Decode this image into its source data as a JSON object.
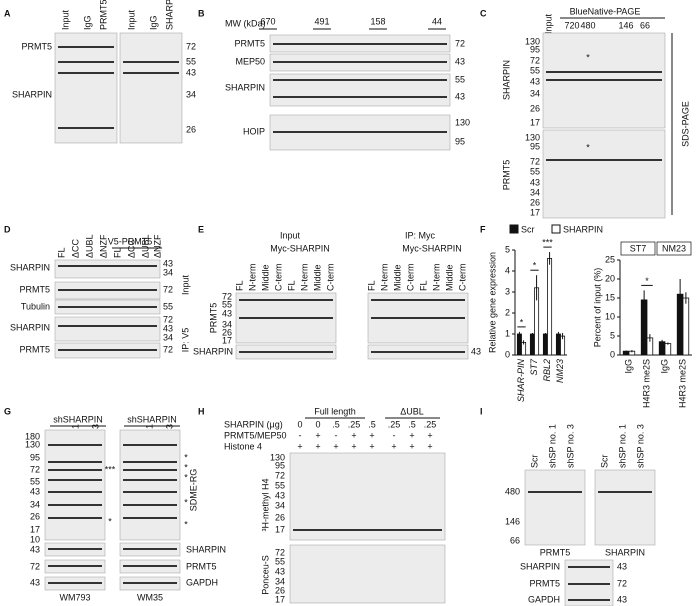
{
  "panels": {
    "A": {
      "letter": "A",
      "lanes_left": [
        "Input",
        "IgG",
        "PRMT5"
      ],
      "lanes_right": [
        "Input",
        "IgG",
        "SHARPIN"
      ],
      "rows": [
        "PRMT5",
        "SHARPIN"
      ],
      "mw": [
        72,
        55,
        43,
        34,
        26
      ]
    },
    "B": {
      "letter": "B",
      "mw_label": "MW (kDa)",
      "fractions": [
        670,
        491,
        158,
        44
      ],
      "rows": [
        "PRMT5",
        "MEP50",
        "SHARPIN",
        "HOIP"
      ],
      "mw": [
        72,
        43,
        55,
        43,
        130,
        95
      ]
    },
    "C": {
      "letter": "C",
      "title": "BlueNative-PAGE",
      "sizes": [
        720,
        480,
        146,
        66
      ],
      "lane": "Input",
      "rows": [
        "SHARPIN",
        "PRMT5"
      ],
      "mw_top": [
        130,
        95,
        72,
        55,
        43,
        34,
        26,
        17
      ],
      "mw_bottom": [
        130,
        95,
        72,
        55,
        43,
        34,
        26,
        17
      ],
      "side": "SDS-PAGE",
      "marks": [
        "*",
        "*"
      ]
    },
    "D": {
      "letter": "D",
      "group": "V5-PRMT5",
      "lanes": [
        "FL",
        "ΔCC",
        "ΔUBL",
        "ΔNZF",
        "FL",
        "ΔCC",
        "ΔUBL",
        "ΔNZF"
      ],
      "rows": [
        "SHARPIN",
        "PRMT5",
        "Tubulin",
        "SHARPIN",
        "PRMT5"
      ],
      "mw": [
        43,
        34,
        72,
        55,
        72,
        43,
        34,
        72
      ],
      "sides": [
        "Input",
        "IP: V5"
      ]
    },
    "E": {
      "letter": "E",
      "groups": [
        "Input",
        "IP: Myc"
      ],
      "subgroups": [
        "Myc-SHARPIN",
        "Myc-SHARPIN"
      ],
      "lanes": [
        "FL",
        "N-term",
        "Middle",
        "C-term",
        "FL",
        "N-term",
        "Middle",
        "C-term",
        "FL",
        "N-term",
        "Middle",
        "C-term",
        "FL",
        "N-term",
        "Middle",
        "C-term"
      ],
      "rows": [
        "PRMT5",
        "SHARPIN"
      ],
      "mw": [
        72,
        55,
        43,
        34,
        26,
        17
      ],
      "mw_right": 43
    },
    "F": {
      "letter": "F"
    },
    "G": {
      "letter": "G",
      "groups": [
        "shSHARPIN",
        "shSHARPIN"
      ],
      "lanes": [
        "Scr",
        "sh no. 1",
        "sh no. 3",
        "Scr",
        "sh no. 1",
        "sh no. 3"
      ],
      "mw": [
        180,
        130,
        95,
        72,
        55,
        43,
        34,
        26,
        17,
        10
      ],
      "side": "SDME-RG",
      "marks": [
        "***",
        "*",
        "*",
        "*",
        "*",
        "*",
        "*"
      ],
      "rows": [
        "SHARPIN",
        "PRMT5",
        "GAPDH"
      ],
      "rows_mw": [
        43,
        72,
        43
      ],
      "cells": [
        "WM793",
        "WM35"
      ]
    },
    "H": {
      "letter": "H",
      "groups": [
        "Full length",
        "ΔUBL"
      ],
      "row_labels": [
        "SHARPIN (μg)",
        "PRMT5/MEP50",
        "Histone 4"
      ],
      "sharpin": [
        "0",
        "0",
        ".5",
        ".25",
        ".5",
        ".25",
        ".5",
        ".25"
      ],
      "prmt5_mep50": [
        "-",
        "+",
        "-",
        "+",
        "+",
        "-",
        "+",
        "+"
      ],
      "histone4": [
        "+",
        "+",
        "+",
        "+",
        "+",
        "+",
        "+",
        "+"
      ],
      "mw_top": [
        130,
        95,
        72,
        55,
        43,
        34,
        26,
        17
      ],
      "mw_bottom": [
        72,
        55,
        43,
        34,
        26,
        17
      ],
      "blots": [
        "³H-methyl H4",
        "Ponceu-S"
      ]
    },
    "I": {
      "letter": "I",
      "lanes": [
        "Scr",
        "shSP no. 1",
        "shSP no. 3",
        "Scr",
        "shSP no. 1",
        "shSP no. 3"
      ],
      "mw": [
        480,
        146,
        66
      ],
      "blots": [
        "PRMT5",
        "SHARPIN"
      ],
      "rows": [
        "SHARPIN",
        "PRMT5",
        "GAPDH"
      ],
      "rows_mw": [
        43,
        72,
        43
      ]
    }
  },
  "chart_data": [
    {
      "type": "bar",
      "ylabel": "Relative gene expression",
      "categories": [
        "SHAR-PIN",
        "ST7",
        "RBL2",
        "NM23"
      ],
      "series": [
        {
          "name": "Scr",
          "color": "#111111",
          "values": [
            1.0,
            1.0,
            1.0,
            1.0
          ],
          "errors": [
            0.1,
            0.05,
            0.05,
            0.1
          ]
        },
        {
          "name": "SHARPIN",
          "color": "#ffffff",
          "values": [
            0.6,
            3.2,
            4.6,
            0.9
          ],
          "errors": [
            0.1,
            0.6,
            0.3,
            0.15
          ]
        }
      ],
      "ylim": [
        0,
        5
      ],
      "yticks": [
        0,
        1,
        2,
        3,
        4,
        5
      ],
      "annotations": [
        "*",
        "*",
        "***"
      ]
    },
    {
      "type": "bar",
      "ylabel": "Percent of input (%)",
      "groups": [
        "ST7",
        "NM23"
      ],
      "categories": [
        "IgG",
        "H4R3 me2S",
        "IgG",
        "H4R3 me2S"
      ],
      "series": [
        {
          "color": "#111111",
          "values": [
            1,
            14.5,
            3.5,
            16
          ],
          "errors": [
            0.2,
            2.5,
            0.5,
            4
          ]
        },
        {
          "color": "#ffffff",
          "values": [
            1,
            4.5,
            3,
            15
          ],
          "errors": [
            0.3,
            1,
            0.3,
            1.5
          ]
        }
      ],
      "ylim": [
        0,
        25
      ],
      "yticks": [
        0,
        5,
        10,
        15,
        20,
        25
      ],
      "annotations": [
        "*"
      ]
    }
  ]
}
